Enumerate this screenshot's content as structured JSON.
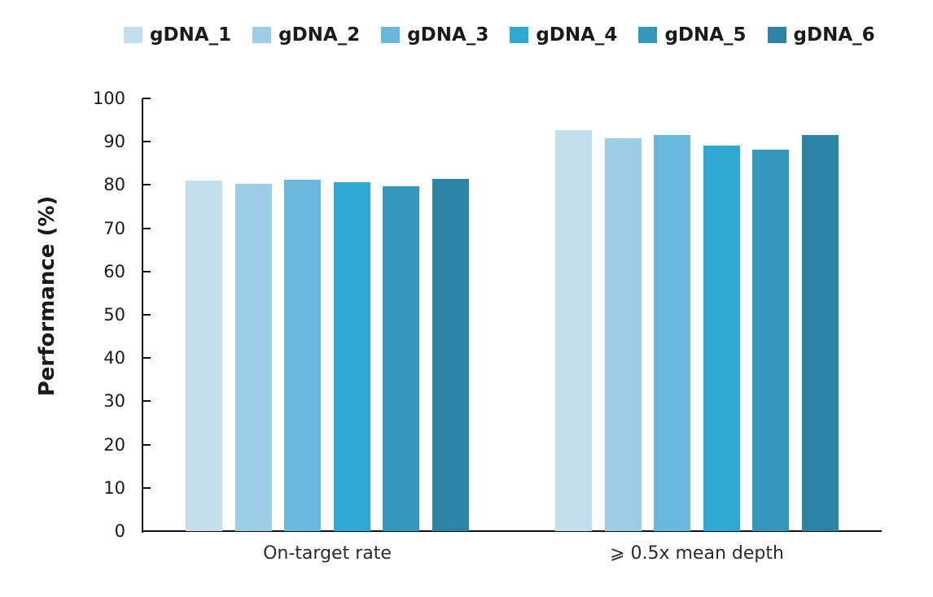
{
  "chart_data": {
    "type": "bar",
    "title": "",
    "xlabel": "",
    "ylabel": "Performance (%)",
    "categories": [
      "On-target rate",
      "⩾ 0.5x mean depth"
    ],
    "series": [
      {
        "name": "gDNA_1",
        "color": "#C3DEED",
        "values": [
          81.0,
          92.7
        ]
      },
      {
        "name": "gDNA_2",
        "color": "#9BCDE6",
        "values": [
          80.3,
          90.8
        ]
      },
      {
        "name": "gDNA_3",
        "color": "#68B8DD",
        "values": [
          81.2,
          91.5
        ]
      },
      {
        "name": "gDNA_4",
        "color": "#2FA9D4",
        "values": [
          80.7,
          89.1
        ]
      },
      {
        "name": "gDNA_5",
        "color": "#3398BC",
        "values": [
          79.7,
          88.1
        ]
      },
      {
        "name": "gDNA_6",
        "color": "#2E84A4",
        "values": [
          81.3,
          91.6
        ]
      }
    ],
    "ylim": [
      0,
      100
    ],
    "yticks": [
      0,
      10,
      20,
      30,
      40,
      50,
      60,
      70,
      80,
      90,
      100
    ],
    "legend_position": "top",
    "grid": false,
    "axis_color": "#111111"
  }
}
